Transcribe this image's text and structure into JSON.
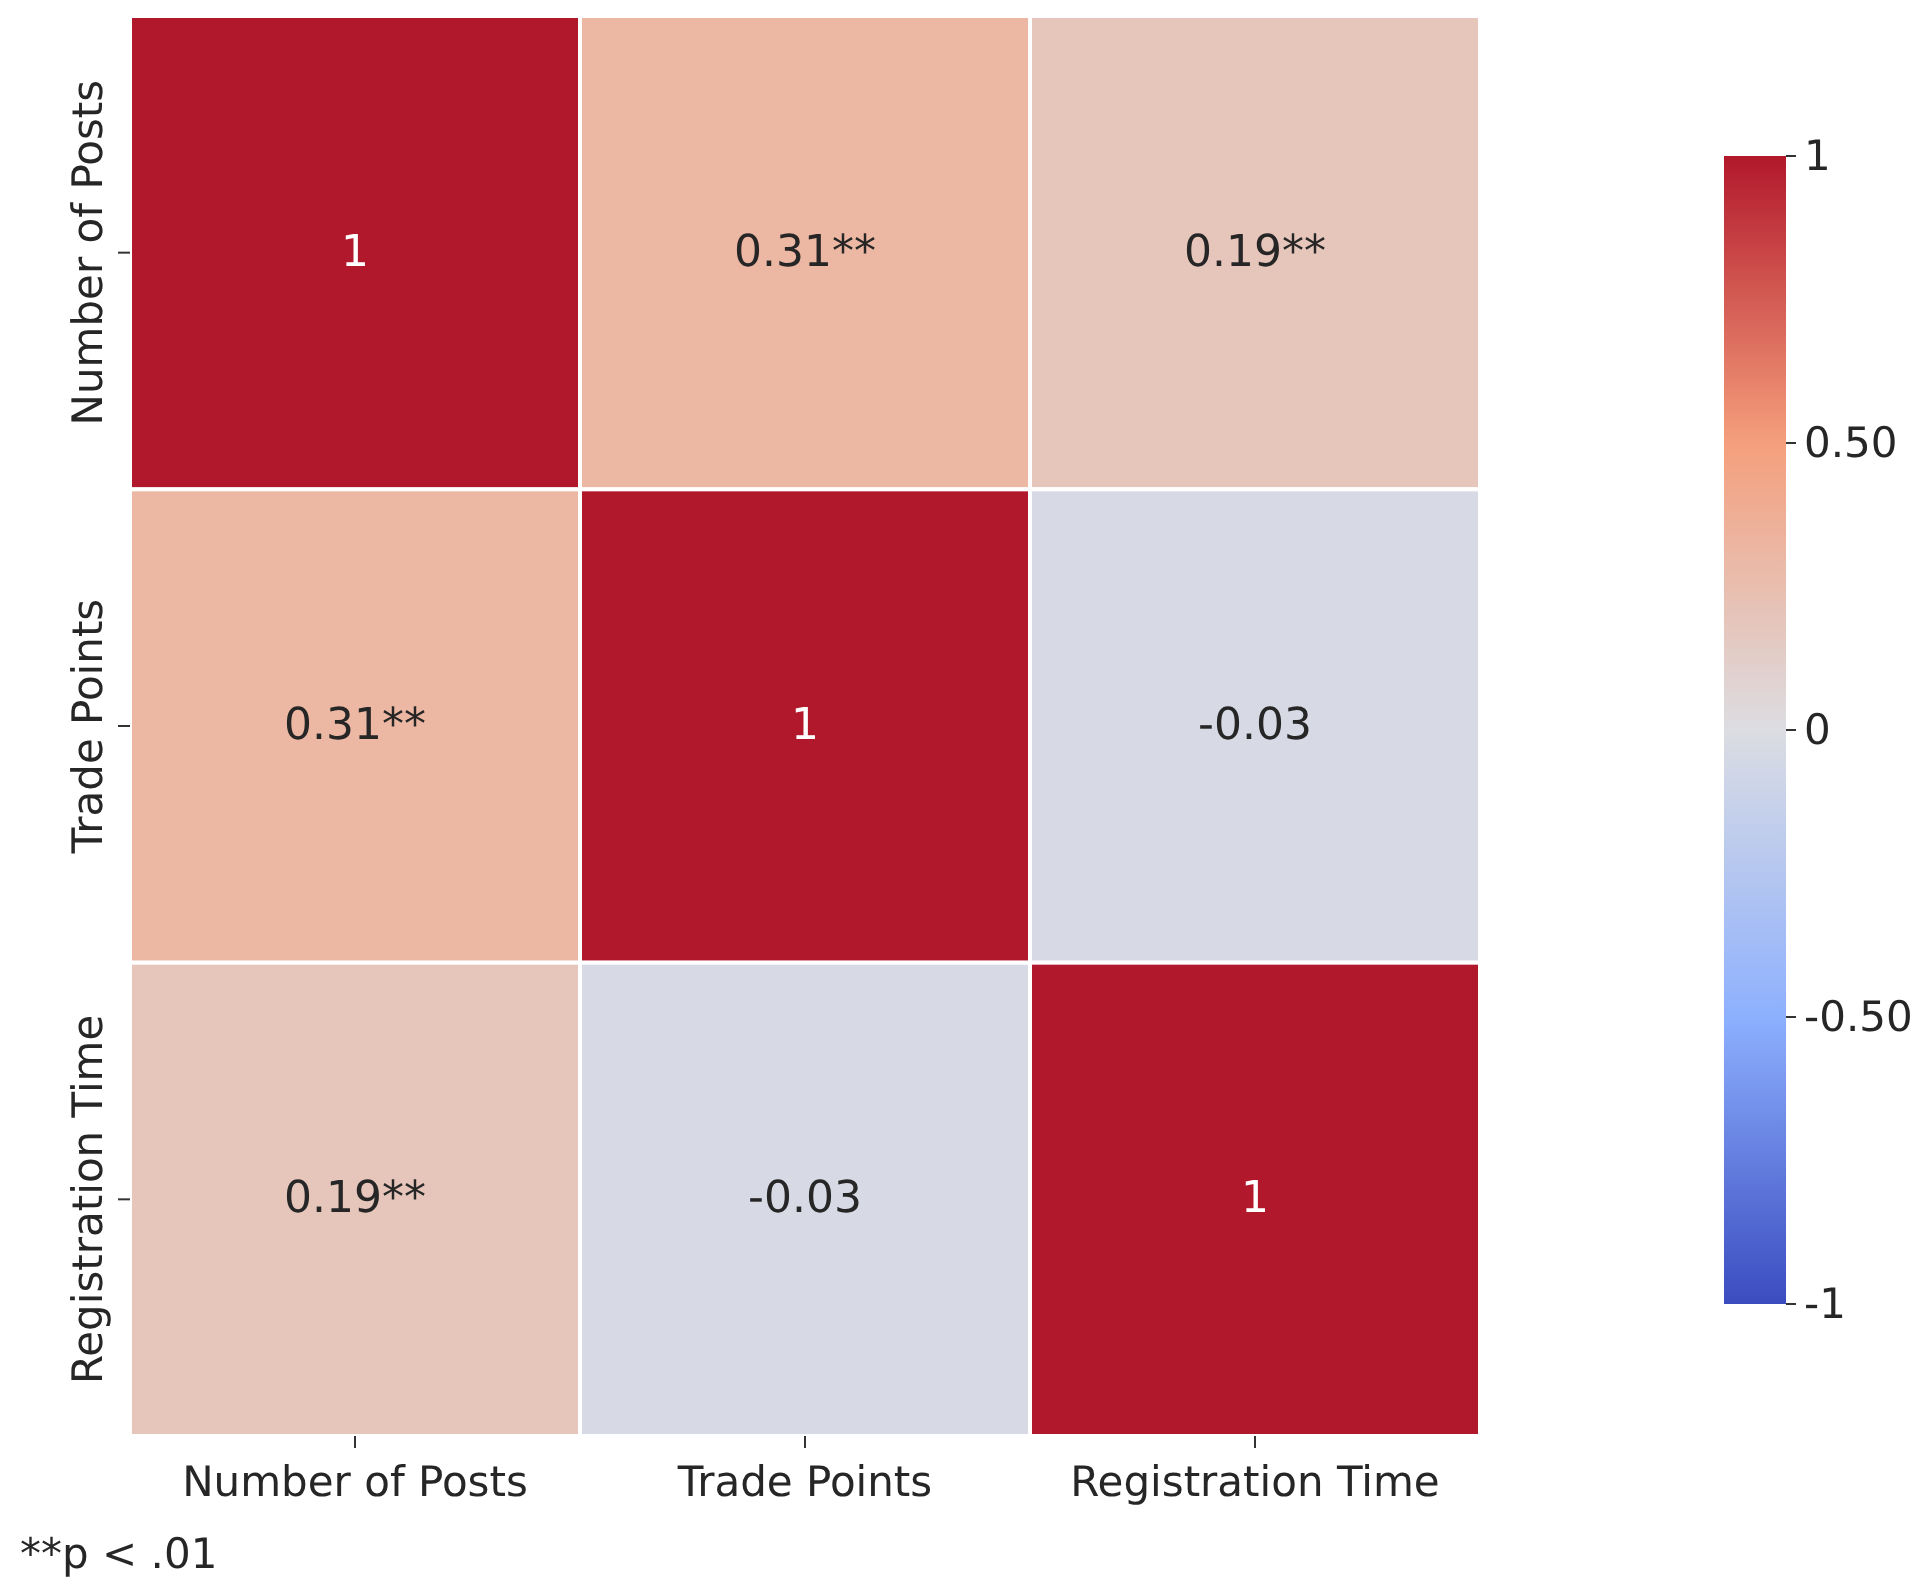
{
  "chart_data": {
    "type": "heatmap",
    "categories": [
      "Number of Posts",
      "Trade Points",
      "Registration Time"
    ],
    "y_categories": [
      "Number of Posts",
      "Trade Points",
      "Registration Time"
    ],
    "cells": [
      [
        1,
        0.31,
        0.19
      ],
      [
        0.31,
        1,
        -0.03
      ],
      [
        0.19,
        -0.03,
        1
      ]
    ],
    "cell_labels": [
      [
        "1",
        "0.31**",
        "0.19**"
      ],
      [
        "0.31**",
        "1",
        "-0.03"
      ],
      [
        "0.19**",
        "-0.03",
        "1"
      ]
    ],
    "clim": [
      -1,
      1
    ],
    "cticks": [
      {
        "value": -1,
        "label": "-1"
      },
      {
        "value": -0.5,
        "label": "-0.50"
      },
      {
        "value": 0,
        "label": "0"
      },
      {
        "value": 0.5,
        "label": "0.50"
      },
      {
        "value": 1,
        "label": "1"
      }
    ],
    "annotations": [
      "**p < .01"
    ]
  }
}
